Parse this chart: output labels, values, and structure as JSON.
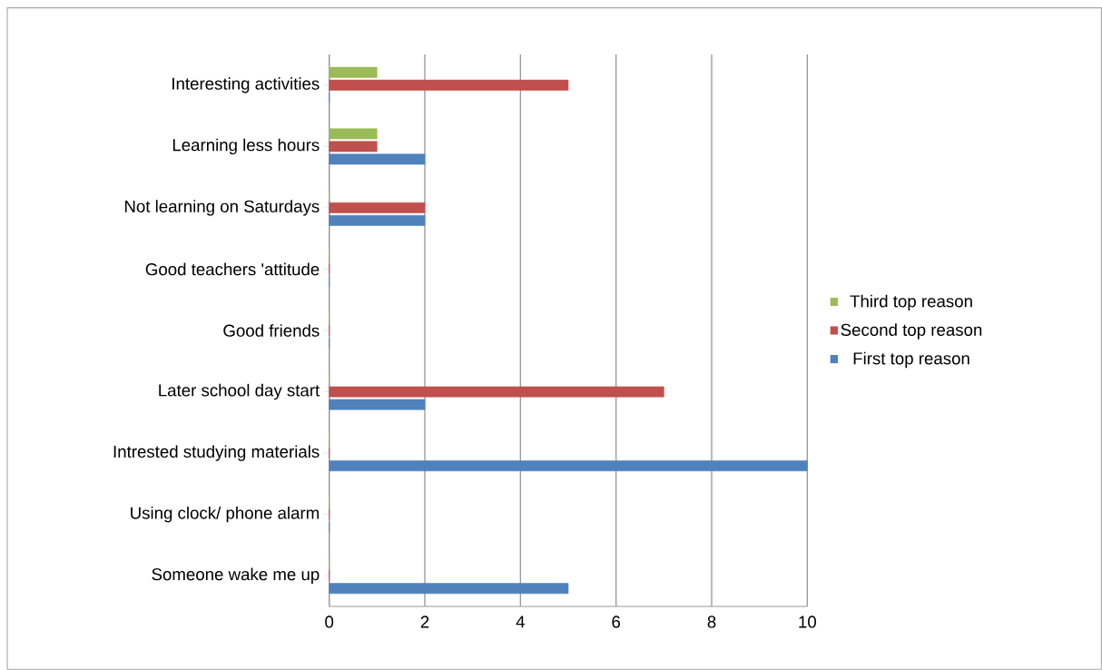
{
  "chart_data": {
    "type": "bar",
    "orientation": "horizontal",
    "categories": [
      "Interesting activities",
      "Learning less hours",
      "Not learning on Saturdays",
      "Good teachers 'attitude",
      "Good friends",
      "Later school day start",
      "Intrested studying materials",
      "Using clock/ phone alarm",
      "Someone wake me up"
    ],
    "series": [
      {
        "name": "First top reason",
        "color": "#4f81bd",
        "values": [
          0,
          2,
          2,
          0,
          0,
          2,
          10,
          0,
          5
        ]
      },
      {
        "name": "Second top reason",
        "color": "#c0504d",
        "values": [
          5,
          1,
          2,
          0,
          0,
          7,
          0,
          0,
          0
        ]
      },
      {
        "name": "Third top reason",
        "color": "#9bbb59",
        "values": [
          1,
          1,
          0,
          0,
          0,
          0,
          0,
          0,
          0
        ]
      }
    ],
    "xlim": [
      0,
      10
    ],
    "xticks": [
      0,
      2,
      4,
      6,
      8,
      10
    ],
    "grid": "x",
    "legend": "right"
  }
}
